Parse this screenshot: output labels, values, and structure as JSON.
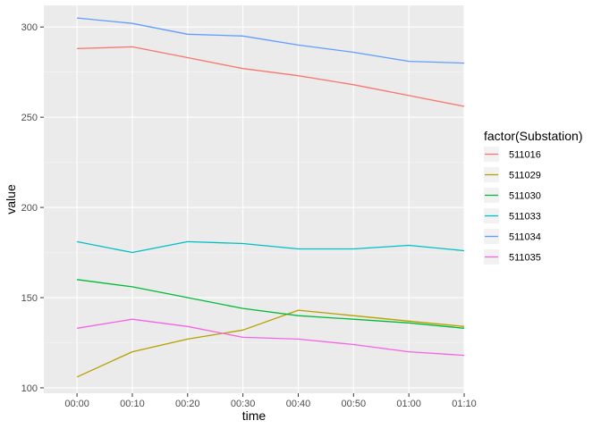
{
  "chart_data": {
    "type": "line",
    "xlabel": "time",
    "ylabel": "value",
    "categories": [
      "00:00",
      "00:10",
      "00:20",
      "00:30",
      "00:40",
      "00:50",
      "01:00",
      "01:10"
    ],
    "ylim": [
      97,
      312
    ],
    "yticks": [
      100,
      150,
      200,
      250,
      300
    ],
    "grid": true,
    "legend": {
      "title": "factor(Substation)",
      "placement": "right"
    },
    "series": [
      {
        "name": "511016",
        "color": "#F8766D",
        "values": [
          288,
          289,
          283,
          277,
          273,
          268,
          262,
          256
        ]
      },
      {
        "name": "511029",
        "color": "#B79F00",
        "values": [
          106,
          120,
          127,
          132,
          143,
          140,
          137,
          134
        ]
      },
      {
        "name": "511030",
        "color": "#00BA38",
        "values": [
          160,
          156,
          150,
          144,
          140,
          138,
          136,
          133
        ]
      },
      {
        "name": "511033",
        "color": "#00BFC4",
        "values": [
          181,
          175,
          181,
          180,
          177,
          177,
          179,
          176
        ]
      },
      {
        "name": "511034",
        "color": "#619CFF",
        "values": [
          305,
          302,
          296,
          295,
          290,
          286,
          281,
          280
        ]
      },
      {
        "name": "511035",
        "color": "#F564E3",
        "values": [
          133,
          138,
          134,
          128,
          127,
          124,
          120,
          118
        ]
      }
    ]
  }
}
